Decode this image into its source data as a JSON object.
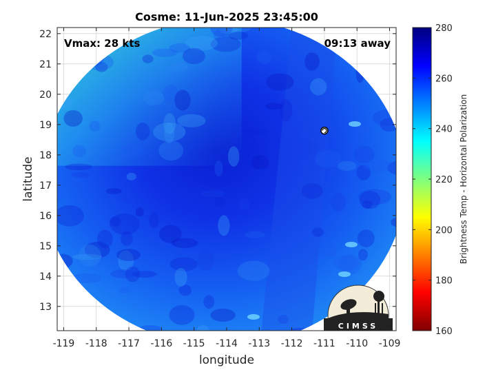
{
  "chart_data": {
    "type": "heatmap",
    "title": "Cosme: 11-Jun-2025 23:45:00",
    "xlabel": "longitude",
    "ylabel": "latitude",
    "xlim": [
      -119.2,
      -108.8
    ],
    "ylim": [
      12.2,
      22.2
    ],
    "xticks": [
      -119,
      -118,
      -117,
      -116,
      -115,
      -114,
      -113,
      -112,
      -111,
      -110,
      -109
    ],
    "yticks": [
      13,
      14,
      15,
      16,
      17,
      18,
      19,
      20,
      21,
      22
    ],
    "grid": true,
    "annotations": {
      "vmax": "Vmax: 28 kts",
      "time_away": "09:13 away"
    },
    "storm_center": {
      "lon": -111.0,
      "lat": 18.8
    },
    "colorbar": {
      "label": "Brightness Temp - Horizontal Polarization",
      "min": 160,
      "max": 280,
      "ticks": [
        160,
        180,
        200,
        220,
        240,
        260,
        280
      ],
      "colormap": "jet"
    },
    "swath": {
      "center_lon": -114.1,
      "center_lat": 17.1,
      "radius_lon": 5.6,
      "radius_lat": 5.4
    },
    "logo": {
      "text": "CIMSS"
    }
  }
}
